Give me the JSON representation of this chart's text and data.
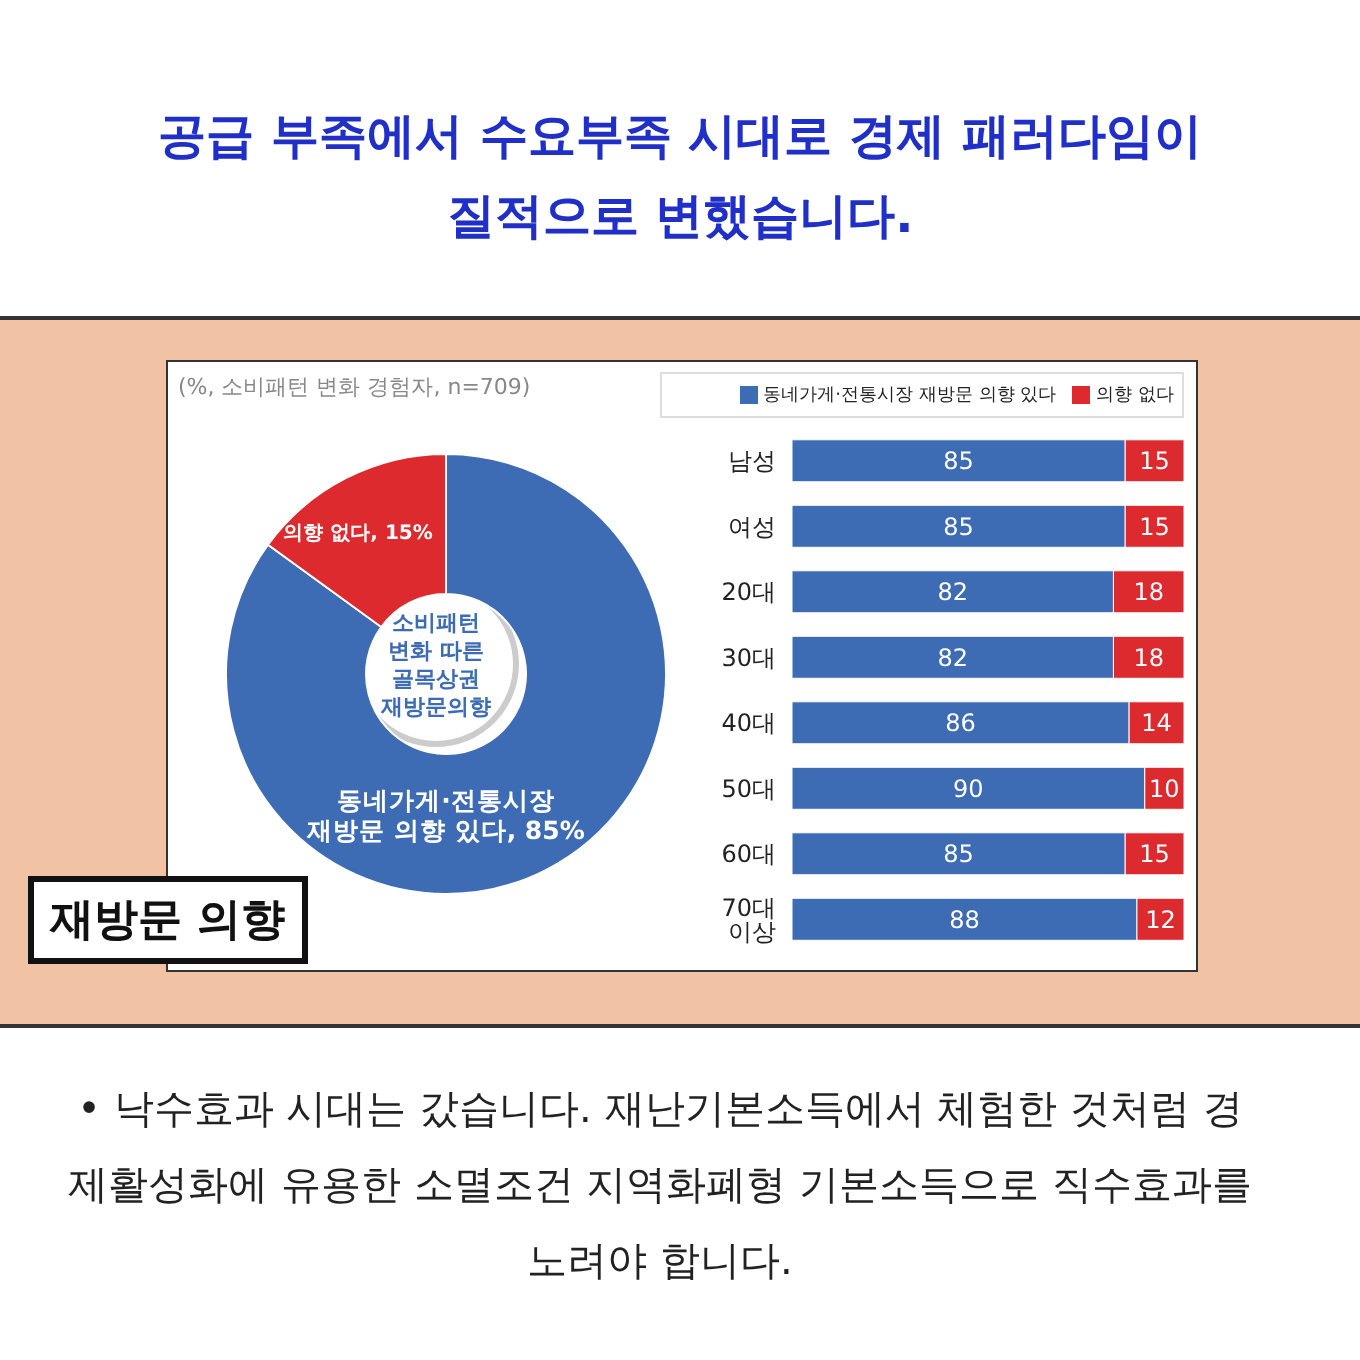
{
  "chart_data": [
    {
      "type": "donut",
      "title": "공급 부족에서 수요부족 시대로 경제 패러다임이 질적으로 변했습니다.",
      "subtitle": "(%, 소비패턴 변화 경험자, n=709)",
      "categories": [
        "동네가게·전통시장 재방문 의향 있다",
        "의향 없다"
      ],
      "values": [
        85,
        15
      ],
      "value_labels": [
        "85%",
        "15%"
      ],
      "colors": [
        "#3e6cb4",
        "#dc2a2e"
      ],
      "annotations": [
        "소비패턴 변화 따른 골목상권 재방문의향",
        "재방문 의향",
        "• 낙수효과 시대는 갔습니다. 재난기본소득에서 체험한 것처럼 경제활성화에 유용한 소멸조건 지역화폐형 기본소득으로 직수효과를 노려야 합니다."
      ]
    },
    {
      "type": "bar",
      "orientation": "horizontal",
      "stacked": true,
      "data_labels": true,
      "legend": "top",
      "categories": [
        "남성",
        "여성",
        "20대",
        "30대",
        "40대",
        "50대",
        "60대",
        "70대 이상"
      ],
      "series": [
        {
          "name": "동네가게·전통시장 재방문 의향 있다",
          "color": "#3e6cb4",
          "values": [
            85,
            85,
            82,
            82,
            86,
            90,
            85,
            88
          ]
        },
        {
          "name": "의향 없다",
          "color": "#dc2a2e",
          "values": [
            15,
            15,
            18,
            18,
            14,
            10,
            15,
            12
          ]
        }
      ]
    }
  ]
}
